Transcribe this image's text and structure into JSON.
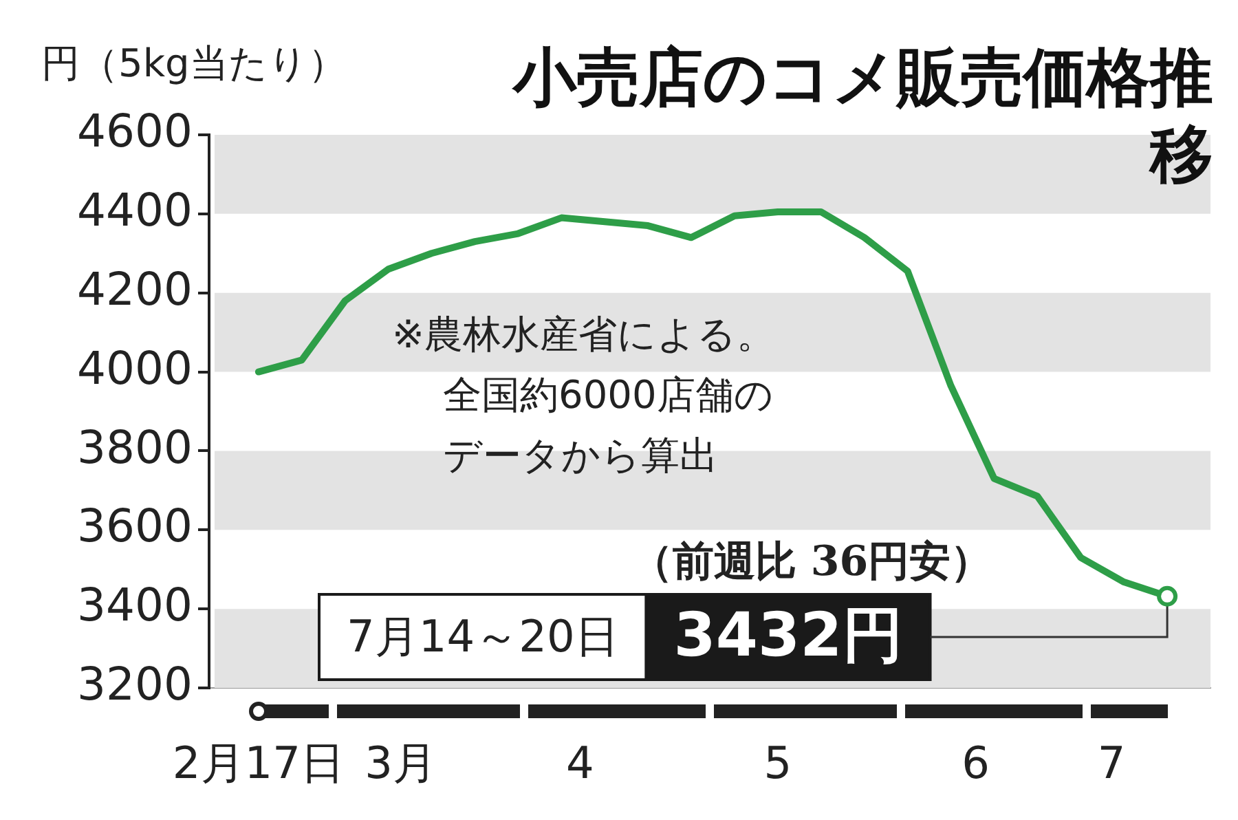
{
  "chart_data": {
    "type": "line",
    "title": "小売店のコメ販売価格推移",
    "ylabel": "円（5kg当たり）",
    "x": [
      "--02-17",
      "--02-24",
      "--03-03",
      "--03-10",
      "--03-17",
      "--03-24",
      "--03-31",
      "--04-07",
      "--04-14",
      "--04-21",
      "--04-28",
      "--05-05",
      "--05-12",
      "--05-19",
      "--05-26",
      "--06-02",
      "--06-09",
      "--06-16",
      "--06-23",
      "--06-30",
      "--07-07",
      "--07-14"
    ],
    "series": [
      {
        "color": "#2e9e48",
        "values": [
          4000,
          4030,
          4180,
          4260,
          4300,
          4330,
          4350,
          4390,
          4380,
          4370,
          4340,
          4395,
          4405,
          4405,
          4340,
          4255,
          3965,
          3730,
          3685,
          3530,
          3468,
          3432
        ]
      }
    ],
    "xlim": [
      "--02-09",
      "--07-21"
    ],
    "xticks": [
      {
        "value": "--02-17",
        "label": "2月17日"
      },
      {
        "value": "--03-12",
        "label": "3月"
      },
      {
        "value": "--04-10",
        "label": "4"
      },
      {
        "value": "--05-12",
        "label": "5"
      },
      {
        "value": "--06-13",
        "label": "6"
      },
      {
        "value": "--07-05",
        "label": "7"
      }
    ],
    "ylim": [
      3200,
      4600
    ],
    "yticks": [
      3200,
      3400,
      3600,
      3800,
      4000,
      4200,
      4400,
      4600
    ],
    "legend": false,
    "bands": [
      {
        "axis": "y",
        "from": 4400,
        "to": 4600,
        "color": "#e3e3e3"
      },
      {
        "axis": "y",
        "from": 4000,
        "to": 4200,
        "color": "#e3e3e3"
      },
      {
        "axis": "y",
        "from": 3600,
        "to": 3800,
        "color": "#e3e3e3"
      },
      {
        "axis": "y",
        "from": 3200,
        "to": 3400,
        "color": "#e3e3e3"
      }
    ],
    "annotations": [
      "※農林水産省による。全国約6000店舗のデータから算出",
      "（前週比 36円安）",
      "7月14～20日",
      {
        "text": "3432円",
        "x": "--07-14",
        "y": 3432
      }
    ]
  }
}
